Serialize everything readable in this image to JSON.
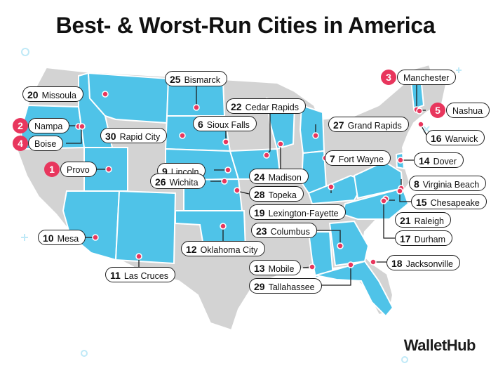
{
  "title": "Best- & Worst-Run Cities in America",
  "brand": "WalletHub",
  "colors": {
    "accent": "#e8365d",
    "state_highlight": "#4fc3e8",
    "state_other": "#d3d3d3",
    "border": "#ffffff",
    "label_border": "#1d1d1d"
  },
  "cities": [
    {
      "rank": "1",
      "name": "Provo"
    },
    {
      "rank": "2",
      "name": "Nampa"
    },
    {
      "rank": "3",
      "name": "Manchester"
    },
    {
      "rank": "4",
      "name": "Boise"
    },
    {
      "rank": "5",
      "name": "Nashua"
    },
    {
      "rank": "6",
      "name": "Sioux Falls"
    },
    {
      "rank": "7",
      "name": "Fort Wayne"
    },
    {
      "rank": "8",
      "name": "Virginia Beach"
    },
    {
      "rank": "9",
      "name": "Lincoln"
    },
    {
      "rank": "10",
      "name": "Mesa"
    },
    {
      "rank": "11",
      "name": "Las Cruces"
    },
    {
      "rank": "12",
      "name": "Oklahoma City"
    },
    {
      "rank": "13",
      "name": "Mobile"
    },
    {
      "rank": "14",
      "name": "Dover"
    },
    {
      "rank": "15",
      "name": "Chesapeake"
    },
    {
      "rank": "16",
      "name": "Warwick"
    },
    {
      "rank": "17",
      "name": "Durham"
    },
    {
      "rank": "18",
      "name": "Jacksonville"
    },
    {
      "rank": "19",
      "name": "Lexington-Fayette"
    },
    {
      "rank": "20",
      "name": "Missoula"
    },
    {
      "rank": "21",
      "name": "Raleigh"
    },
    {
      "rank": "22",
      "name": "Cedar Rapids"
    },
    {
      "rank": "23",
      "name": "Columbus"
    },
    {
      "rank": "24",
      "name": "Madison"
    },
    {
      "rank": "25",
      "name": "Bismarck"
    },
    {
      "rank": "26",
      "name": "Wichita"
    },
    {
      "rank": "27",
      "name": "Grand Rapids"
    },
    {
      "rank": "28",
      "name": "Topeka"
    },
    {
      "rank": "29",
      "name": "Tallahassee"
    },
    {
      "rank": "30",
      "name": "Rapid City"
    }
  ]
}
